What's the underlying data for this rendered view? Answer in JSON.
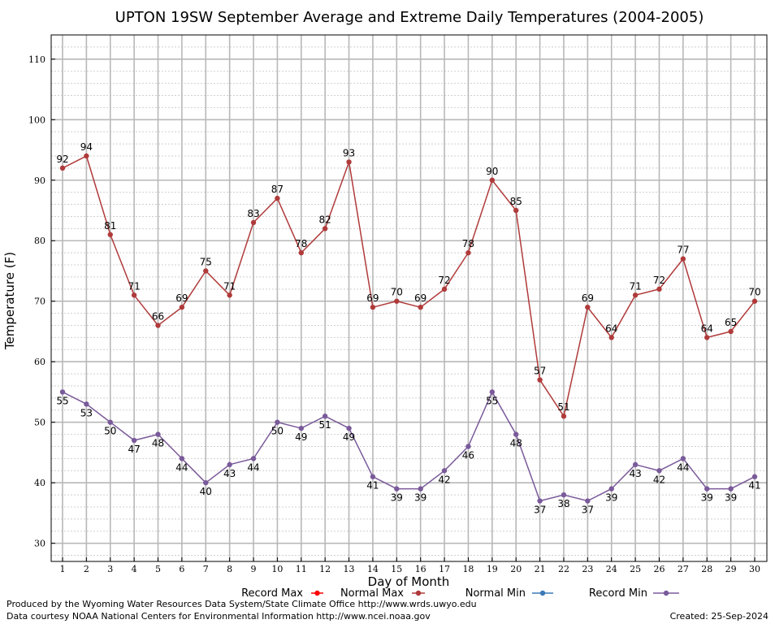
{
  "chart_data": {
    "type": "line",
    "title": "UPTON 19SW September Average and Extreme Daily Temperatures (2004-2005)",
    "xlabel": "Day of Month",
    "ylabel": "Temperature (F)",
    "ylim": [
      27,
      114
    ],
    "y_ticks": [
      30,
      40,
      50,
      60,
      70,
      80,
      90,
      100,
      110
    ],
    "x": [
      1,
      2,
      3,
      4,
      5,
      6,
      7,
      8,
      9,
      10,
      11,
      12,
      13,
      14,
      15,
      16,
      17,
      18,
      19,
      20,
      21,
      22,
      23,
      24,
      25,
      26,
      27,
      28,
      29,
      30
    ],
    "grid": true,
    "legend_position": "bottom",
    "legend": [
      {
        "name": "Record Max",
        "color": "#ff0000"
      },
      {
        "name": "Normal Max",
        "color": "#b03a3a"
      },
      {
        "name": "Normal Min",
        "color": "#3a7ab8"
      },
      {
        "name": "Record Min",
        "color": "#7a5a9a"
      }
    ],
    "series": [
      {
        "name": "Normal Max",
        "color": "#b03a3a",
        "values": [
          92,
          94,
          81,
          71,
          66,
          69,
          75,
          71,
          83,
          87,
          78,
          82,
          93,
          69,
          70,
          69,
          72,
          78,
          90,
          85,
          57,
          51,
          69,
          64,
          71,
          72,
          77,
          64,
          65,
          70
        ]
      },
      {
        "name": "Record Min",
        "color": "#7a5a9a",
        "values": [
          55,
          53,
          50,
          47,
          48,
          44,
          40,
          43,
          44,
          50,
          49,
          51,
          49,
          41,
          39,
          39,
          42,
          46,
          55,
          48,
          37,
          38,
          37,
          39,
          43,
          42,
          44,
          39,
          39,
          41
        ]
      }
    ]
  },
  "footer": {
    "produced_by": "Produced by the Wyoming Water Resources Data System/State Climate Office http://www.wrds.uwyo.edu",
    "courtesy": "Data courtesy NOAA National Centers for Environmental Information http://www.ncei.noaa.gov",
    "created": "Created: 25-Sep-2024"
  }
}
